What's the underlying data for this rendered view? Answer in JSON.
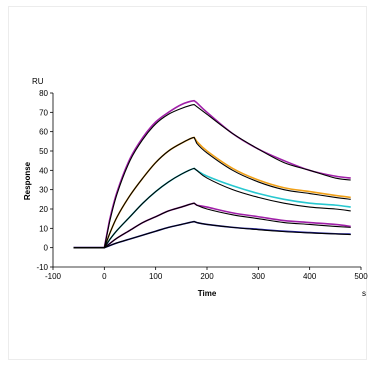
{
  "chart_data": {
    "type": "line",
    "title": "",
    "xlabel": "Time",
    "ylabel": "Response",
    "x_unit": "s",
    "y_unit": "RU",
    "xlim": [
      -100,
      500
    ],
    "ylim": [
      -10,
      80
    ],
    "x_ticks": [
      -100,
      0,
      100,
      200,
      300,
      400,
      500
    ],
    "y_ticks": [
      -10,
      0,
      10,
      20,
      30,
      40,
      50,
      60,
      70,
      80
    ],
    "grid": false,
    "legend": "none",
    "series": [
      {
        "color": "#a020a8",
        "points": [
          [
            -60,
            0
          ],
          [
            0,
            0
          ],
          [
            10,
            14
          ],
          [
            25,
            29
          ],
          [
            50,
            46
          ],
          [
            75,
            57
          ],
          [
            100,
            65
          ],
          [
            125,
            70
          ],
          [
            150,
            74
          ],
          [
            175,
            76
          ],
          [
            180,
            75
          ],
          [
            200,
            70
          ],
          [
            250,
            59
          ],
          [
            300,
            51
          ],
          [
            350,
            45
          ],
          [
            400,
            40
          ],
          [
            450,
            37
          ],
          [
            480,
            36
          ]
        ]
      },
      {
        "color": "#f0a018",
        "points": [
          [
            -60,
            0
          ],
          [
            0,
            0
          ],
          [
            10,
            7
          ],
          [
            25,
            16
          ],
          [
            50,
            27
          ],
          [
            75,
            36
          ],
          [
            100,
            44
          ],
          [
            125,
            50
          ],
          [
            150,
            54
          ],
          [
            175,
            57
          ],
          [
            180,
            55
          ],
          [
            200,
            50
          ],
          [
            250,
            41
          ],
          [
            300,
            35
          ],
          [
            350,
            31
          ],
          [
            400,
            29
          ],
          [
            450,
            27
          ],
          [
            480,
            26
          ]
        ]
      },
      {
        "color": "#28c8d0",
        "points": [
          [
            -60,
            0
          ],
          [
            0,
            0
          ],
          [
            10,
            4
          ],
          [
            25,
            9
          ],
          [
            50,
            16
          ],
          [
            75,
            23
          ],
          [
            100,
            29
          ],
          [
            125,
            34
          ],
          [
            150,
            38
          ],
          [
            175,
            41
          ],
          [
            180,
            40
          ],
          [
            200,
            37
          ],
          [
            250,
            32
          ],
          [
            300,
            28
          ],
          [
            350,
            25
          ],
          [
            400,
            23
          ],
          [
            450,
            22
          ],
          [
            480,
            21
          ]
        ]
      },
      {
        "color": "#a020a8",
        "points": [
          [
            -60,
            0
          ],
          [
            0,
            0
          ],
          [
            10,
            2
          ],
          [
            25,
            5
          ],
          [
            50,
            9
          ],
          [
            75,
            13
          ],
          [
            100,
            16
          ],
          [
            125,
            19
          ],
          [
            150,
            21
          ],
          [
            175,
            23
          ],
          [
            180,
            22
          ],
          [
            200,
            21
          ],
          [
            250,
            18
          ],
          [
            300,
            16
          ],
          [
            350,
            14
          ],
          [
            400,
            13
          ],
          [
            450,
            12
          ],
          [
            480,
            11
          ]
        ]
      },
      {
        "color": "#2020a0",
        "points": [
          [
            -60,
            0
          ],
          [
            0,
            0
          ],
          [
            10,
            1
          ],
          [
            25,
            2.5
          ],
          [
            50,
            4.5
          ],
          [
            75,
            6.5
          ],
          [
            100,
            8.5
          ],
          [
            125,
            10.5
          ],
          [
            150,
            12
          ],
          [
            175,
            13.5
          ],
          [
            180,
            13
          ],
          [
            200,
            12
          ],
          [
            250,
            10.5
          ],
          [
            300,
            9.5
          ],
          [
            350,
            8.5
          ],
          [
            400,
            7.8
          ],
          [
            450,
            7.2
          ],
          [
            480,
            7
          ]
        ]
      }
    ],
    "fits": [
      {
        "color": "#000000",
        "points": [
          [
            -60,
            0
          ],
          [
            0,
            0
          ],
          [
            10,
            13
          ],
          [
            25,
            28
          ],
          [
            50,
            45
          ],
          [
            75,
            56
          ],
          [
            100,
            64
          ],
          [
            125,
            69
          ],
          [
            150,
            72
          ],
          [
            175,
            74
          ],
          [
            180,
            73
          ],
          [
            200,
            69
          ],
          [
            250,
            59
          ],
          [
            300,
            51
          ],
          [
            350,
            44
          ],
          [
            400,
            40
          ],
          [
            450,
            36
          ],
          [
            480,
            35
          ]
        ]
      },
      {
        "color": "#000000",
        "points": [
          [
            -60,
            0
          ],
          [
            0,
            0
          ],
          [
            10,
            7
          ],
          [
            25,
            16
          ],
          [
            50,
            27
          ],
          [
            75,
            36
          ],
          [
            100,
            44
          ],
          [
            125,
            50
          ],
          [
            150,
            54
          ],
          [
            175,
            57
          ],
          [
            180,
            54
          ],
          [
            200,
            49
          ],
          [
            250,
            40
          ],
          [
            300,
            34
          ],
          [
            350,
            30
          ],
          [
            400,
            28
          ],
          [
            450,
            26
          ],
          [
            480,
            25
          ]
        ]
      },
      {
        "color": "#000000",
        "points": [
          [
            -60,
            0
          ],
          [
            0,
            0
          ],
          [
            10,
            4
          ],
          [
            25,
            9
          ],
          [
            50,
            16
          ],
          [
            75,
            23
          ],
          [
            100,
            29
          ],
          [
            125,
            34
          ],
          [
            150,
            38
          ],
          [
            175,
            41
          ],
          [
            180,
            40
          ],
          [
            200,
            36
          ],
          [
            250,
            30
          ],
          [
            300,
            26
          ],
          [
            350,
            23
          ],
          [
            400,
            21
          ],
          [
            450,
            20
          ],
          [
            480,
            19
          ]
        ]
      },
      {
        "color": "#000000",
        "points": [
          [
            -60,
            0
          ],
          [
            0,
            0
          ],
          [
            10,
            2
          ],
          [
            25,
            5
          ],
          [
            50,
            9
          ],
          [
            75,
            13
          ],
          [
            100,
            16
          ],
          [
            125,
            19
          ],
          [
            150,
            21
          ],
          [
            175,
            23
          ],
          [
            180,
            22
          ],
          [
            200,
            20
          ],
          [
            250,
            17
          ],
          [
            300,
            15
          ],
          [
            350,
            13
          ],
          [
            400,
            12
          ],
          [
            450,
            11
          ],
          [
            480,
            10.5
          ]
        ]
      },
      {
        "color": "#000000",
        "points": [
          [
            -60,
            0
          ],
          [
            0,
            0
          ],
          [
            10,
            1
          ],
          [
            25,
            2.5
          ],
          [
            50,
            4.5
          ],
          [
            75,
            6.5
          ],
          [
            100,
            8.5
          ],
          [
            125,
            10.5
          ],
          [
            150,
            12
          ],
          [
            175,
            13.5
          ],
          [
            180,
            13
          ],
          [
            200,
            12
          ],
          [
            250,
            10.5
          ],
          [
            300,
            9.3
          ],
          [
            350,
            8.3
          ],
          [
            400,
            7.6
          ],
          [
            450,
            7.1
          ],
          [
            480,
            6.8
          ]
        ]
      }
    ]
  }
}
